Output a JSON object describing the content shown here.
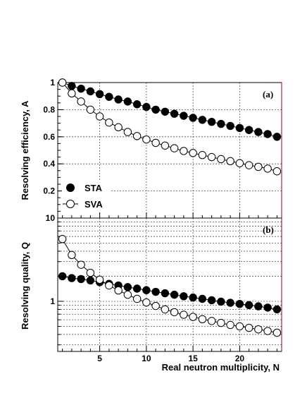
{
  "chart_data": [
    {
      "type": "line",
      "panel_label": "(a)",
      "xlabel": "",
      "ylabel": "Resolving efficiency, A",
      "xlim": [
        0.5,
        24.5
      ],
      "ylim": [
        0,
        1.0
      ],
      "x_ticks": [
        5,
        10,
        15,
        20
      ],
      "y_ticks": [
        0.2,
        0.4,
        0.6,
        0.8,
        1
      ],
      "y_tick_labels": [
        "0.2",
        "0.4",
        "0.6",
        "0.8",
        "1"
      ],
      "x": [
        1,
        2,
        3,
        4,
        5,
        6,
        7,
        8,
        9,
        10,
        11,
        12,
        13,
        14,
        15,
        16,
        17,
        18,
        19,
        20,
        21,
        22,
        23,
        24
      ],
      "series": [
        {
          "name": "STA",
          "marker": "filled-circle",
          "color": "#000000",
          "values": [
            1.0,
            0.975,
            0.955,
            0.935,
            0.915,
            0.895,
            0.875,
            0.86,
            0.84,
            0.82,
            0.8,
            0.785,
            0.77,
            0.755,
            0.74,
            0.725,
            0.71,
            0.695,
            0.68,
            0.665,
            0.65,
            0.635,
            0.62,
            0.6
          ]
        },
        {
          "name": "SVA",
          "marker": "open-circle",
          "color": "#000000",
          "values": [
            1.0,
            0.92,
            0.86,
            0.8,
            0.75,
            0.705,
            0.67,
            0.635,
            0.605,
            0.58,
            0.555,
            0.535,
            0.515,
            0.495,
            0.48,
            0.465,
            0.45,
            0.435,
            0.42,
            0.405,
            0.39,
            0.378,
            0.365,
            0.345
          ]
        }
      ],
      "legend": {
        "placement": "bottom-left",
        "entries": [
          "STA",
          "SVA"
        ]
      },
      "grid": true
    },
    {
      "type": "line",
      "panel_label": "(b)",
      "xlabel": "Real neutron multiplicity, N",
      "ylabel": "Resolving quality, Q",
      "xscale": "log-y",
      "xlim": [
        0.5,
        24.5
      ],
      "ylim": [
        0.25,
        10
      ],
      "y_scale": "log",
      "x_ticks": [
        5,
        10,
        15,
        20
      ],
      "y_ticks": [
        1,
        10
      ],
      "y_tick_labels": [
        "1",
        "10"
      ],
      "x": [
        1,
        2,
        3,
        4,
        5,
        6,
        7,
        8,
        9,
        10,
        11,
        12,
        13,
        14,
        15,
        16,
        17,
        18,
        19,
        20,
        21,
        22,
        23,
        24
      ],
      "series": [
        {
          "name": "STA",
          "marker": "filled-circle",
          "color": "#000000",
          "values": [
            2.0,
            1.9,
            1.85,
            1.78,
            1.7,
            1.62,
            1.55,
            1.48,
            1.42,
            1.36,
            1.3,
            1.25,
            1.2,
            1.15,
            1.11,
            1.07,
            1.03,
            0.99,
            0.96,
            0.93,
            0.9,
            0.87,
            0.84,
            0.8
          ]
        },
        {
          "name": "SVA",
          "marker": "open-circle",
          "color": "#000000",
          "values": [
            5.6,
            3.6,
            2.75,
            2.2,
            1.82,
            1.55,
            1.35,
            1.2,
            1.07,
            0.97,
            0.88,
            0.8,
            0.74,
            0.69,
            0.65,
            0.61,
            0.58,
            0.55,
            0.52,
            0.5,
            0.48,
            0.46,
            0.44,
            0.42
          ]
        }
      ],
      "grid": true
    }
  ]
}
